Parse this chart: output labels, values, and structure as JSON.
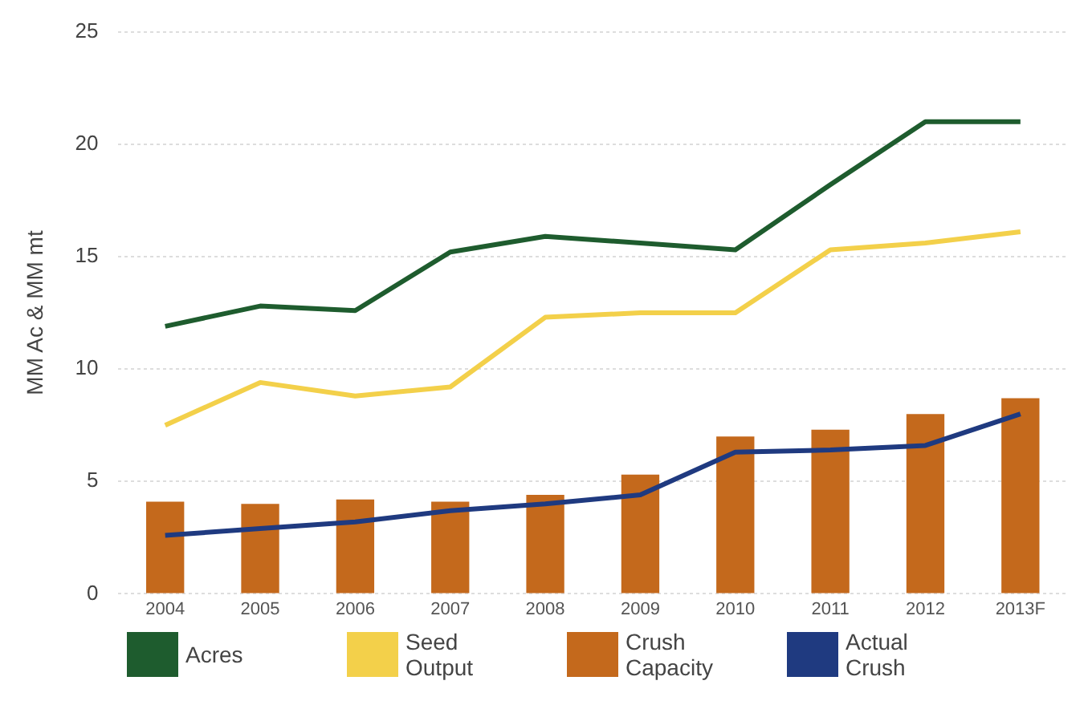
{
  "chart_data": {
    "type": "line",
    "ylabel": "MM Ac & MM mt",
    "categories": [
      "2004",
      "2005",
      "2006",
      "2007",
      "2008",
      "2009",
      "2010",
      "2011",
      "2012",
      "2013F"
    ],
    "series": [
      {
        "name": "Acres",
        "color": "#1e5c2e",
        "values": [
          11.9,
          12.8,
          12.6,
          15.2,
          15.9,
          15.6,
          15.3,
          18.2,
          21,
          21
        ]
      },
      {
        "name": "Seed Output",
        "color": "#f3d04a",
        "values": [
          7.5,
          9.4,
          8.8,
          9.2,
          12.3,
          12.5,
          12.5,
          15.3,
          15.6,
          16.1
        ]
      },
      {
        "name": "Crush Capacity",
        "type": "bar",
        "color": "#c4691c",
        "values": [
          4.1,
          4.0,
          4.2,
          4.1,
          4.4,
          5.3,
          7.0,
          7.3,
          8.0,
          8.7
        ]
      },
      {
        "name": "Actual Crush",
        "color": "#1f3a80",
        "values": [
          2.6,
          2.9,
          3.2,
          3.7,
          4.0,
          4.4,
          6.3,
          6.4,
          6.6,
          8.0
        ]
      }
    ],
    "ylim": [
      0,
      25
    ],
    "yticks": [
      0,
      5,
      10,
      15,
      20,
      25
    ],
    "grid": "y",
    "legend": "bottom",
    "marker": "none",
    "line_style": "solid"
  }
}
